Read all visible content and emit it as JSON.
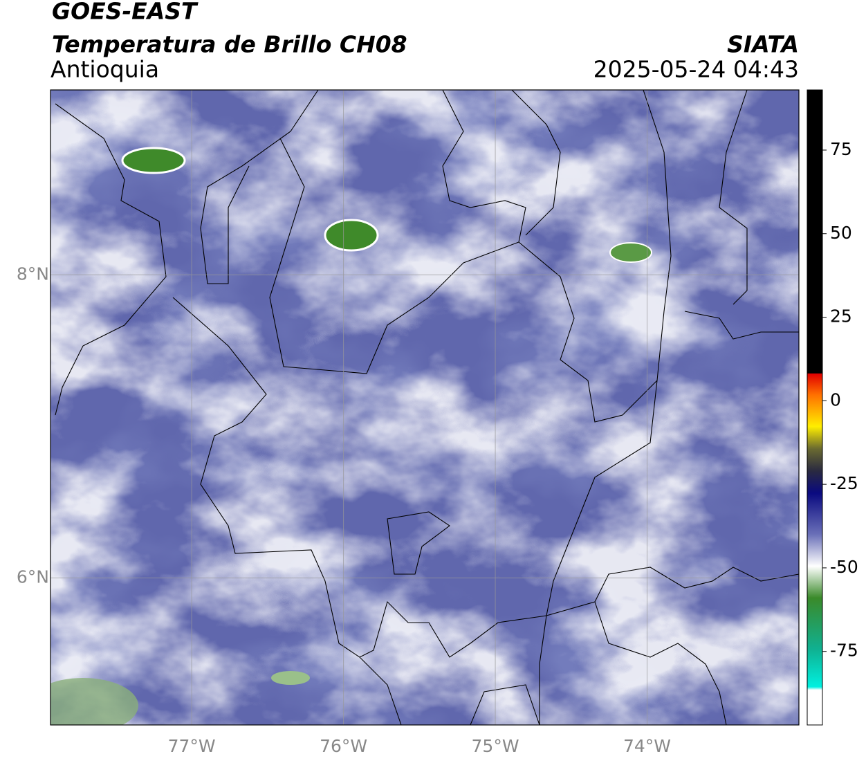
{
  "header": {
    "title": "GOES-EAST",
    "subtitle": "Temperatura de Brillo CH08",
    "region": "Antioquia",
    "source": "SIATA",
    "timestamp": "2025-05-24 04:43"
  },
  "map": {
    "lon_range": [
      -77.93,
      -73.0
    ],
    "lat_range": [
      5.03,
      9.22
    ],
    "lon_ticks": [
      {
        "value": -77,
        "label": "77°W"
      },
      {
        "value": -76,
        "label": "76°W"
      },
      {
        "value": -75,
        "label": "75°W"
      },
      {
        "value": -74,
        "label": "74°W"
      }
    ],
    "lat_ticks": [
      {
        "value": 8,
        "label": "8°N"
      },
      {
        "value": 6,
        "label": "6°N"
      }
    ]
  },
  "colorbar": {
    "range": [
      -97,
      93
    ],
    "ticks": [
      75,
      50,
      25,
      0,
      -25,
      -50,
      -75
    ]
  }
}
